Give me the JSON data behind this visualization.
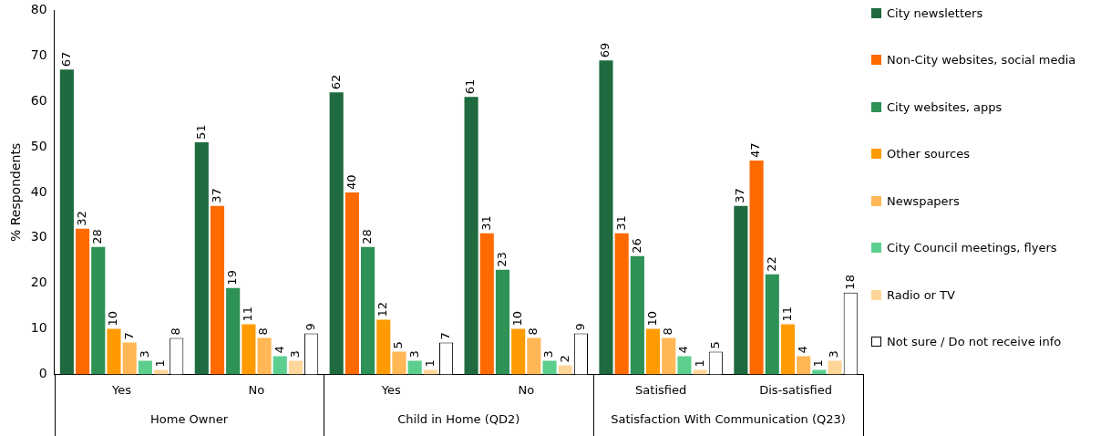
{
  "chart_data": {
    "type": "bar",
    "ylabel": "% Respondents",
    "categories": [
      "Yes",
      "No",
      "Yes",
      "No",
      "Satisfied",
      "Dis-satisfied"
    ],
    "annotations": [
      "Home Owner",
      "Child in Home (QD2)",
      "Satisfaction With Communication (Q23)"
    ],
    "series": [
      {
        "name": "City newsletters",
        "color": "#1f6b3f",
        "values": [
          67,
          51,
          62,
          61,
          69,
          37
        ]
      },
      {
        "name": "Non-City websites, social media",
        "color": "#ff6a00",
        "values": [
          32,
          37,
          40,
          31,
          31,
          47
        ]
      },
      {
        "name": "City websites, apps",
        "color": "#2e9156",
        "values": [
          28,
          19,
          28,
          23,
          26,
          22
        ]
      },
      {
        "name": "Other sources",
        "color": "#ff9b00",
        "values": [
          10,
          11,
          12,
          10,
          10,
          11
        ]
      },
      {
        "name": "Newspapers",
        "color": "#ffb855",
        "values": [
          7,
          8,
          5,
          8,
          8,
          4
        ]
      },
      {
        "name": "City Council meetings, flyers",
        "color": "#5ccf8e",
        "values": [
          3,
          4,
          3,
          3,
          4,
          1
        ]
      },
      {
        "name": "Radio or TV",
        "color": "#ffd699",
        "values": [
          1,
          3,
          1,
          2,
          1,
          3
        ]
      },
      {
        "name": "Not sure / Do not receive info",
        "color": "#ffffff",
        "values": [
          8,
          9,
          7,
          9,
          5,
          18
        ]
      }
    ],
    "ylim": [
      0,
      80
    ],
    "yticks": [
      0,
      10,
      20,
      30,
      40,
      50,
      60,
      70,
      80
    ],
    "grid": false,
    "legend": "right",
    "data_labels": true
  }
}
